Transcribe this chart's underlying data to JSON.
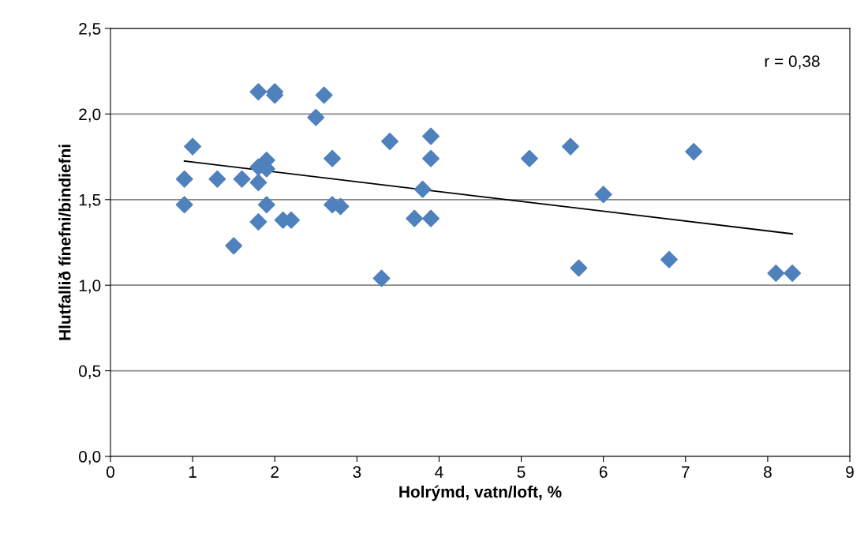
{
  "chart_data": {
    "type": "scatter",
    "xlabel": "Holrýmd, vatn/loft, %",
    "ylabel": "Hlutfallið fínefni/bindiefni",
    "xlim": [
      0,
      9
    ],
    "xticks": [
      0,
      1,
      2,
      3,
      4,
      5,
      6,
      7,
      8,
      9
    ],
    "ylim": [
      0,
      2.5
    ],
    "yticks": [
      {
        "value": 0,
        "label": "0,0"
      },
      {
        "value": 0.5,
        "label": "0,5"
      },
      {
        "value": 1,
        "label": "1,0"
      },
      {
        "value": 1.5,
        "label": "1,5"
      },
      {
        "value": 2,
        "label": "2,0"
      },
      {
        "value": 2.5,
        "label": "2,5"
      }
    ],
    "grid": "y",
    "annotations": [
      "r = 0,38"
    ],
    "series": [
      {
        "marker": "diamond",
        "color": "#4f81bd",
        "x": [
          0.9,
          0.9,
          1.0,
          1.3,
          1.5,
          1.6,
          1.8,
          1.8,
          1.8,
          1.8,
          1.9,
          1.9,
          1.9,
          2.0,
          2.0,
          2.1,
          2.2,
          2.5,
          2.6,
          2.7,
          2.7,
          2.8,
          3.3,
          3.4,
          3.7,
          3.8,
          3.9,
          3.9,
          3.9,
          5.1,
          5.6,
          5.7,
          6.0,
          6.8,
          7.1,
          8.1,
          8.3
        ],
        "values": [
          1.62,
          1.47,
          1.81,
          1.62,
          1.23,
          1.62,
          2.13,
          1.69,
          1.6,
          1.37,
          1.73,
          1.68,
          1.47,
          2.13,
          2.11,
          1.38,
          1.38,
          1.98,
          2.11,
          1.74,
          1.47,
          1.46,
          1.04,
          1.84,
          1.39,
          1.56,
          1.87,
          1.74,
          1.39,
          1.74,
          1.81,
          1.1,
          1.53,
          1.15,
          1.78,
          1.07,
          1.07
        ]
      },
      {
        "type": "line",
        "color": "#000000",
        "x": [
          0.9,
          8.3
        ],
        "values": [
          1.725,
          1.3
        ]
      }
    ]
  }
}
